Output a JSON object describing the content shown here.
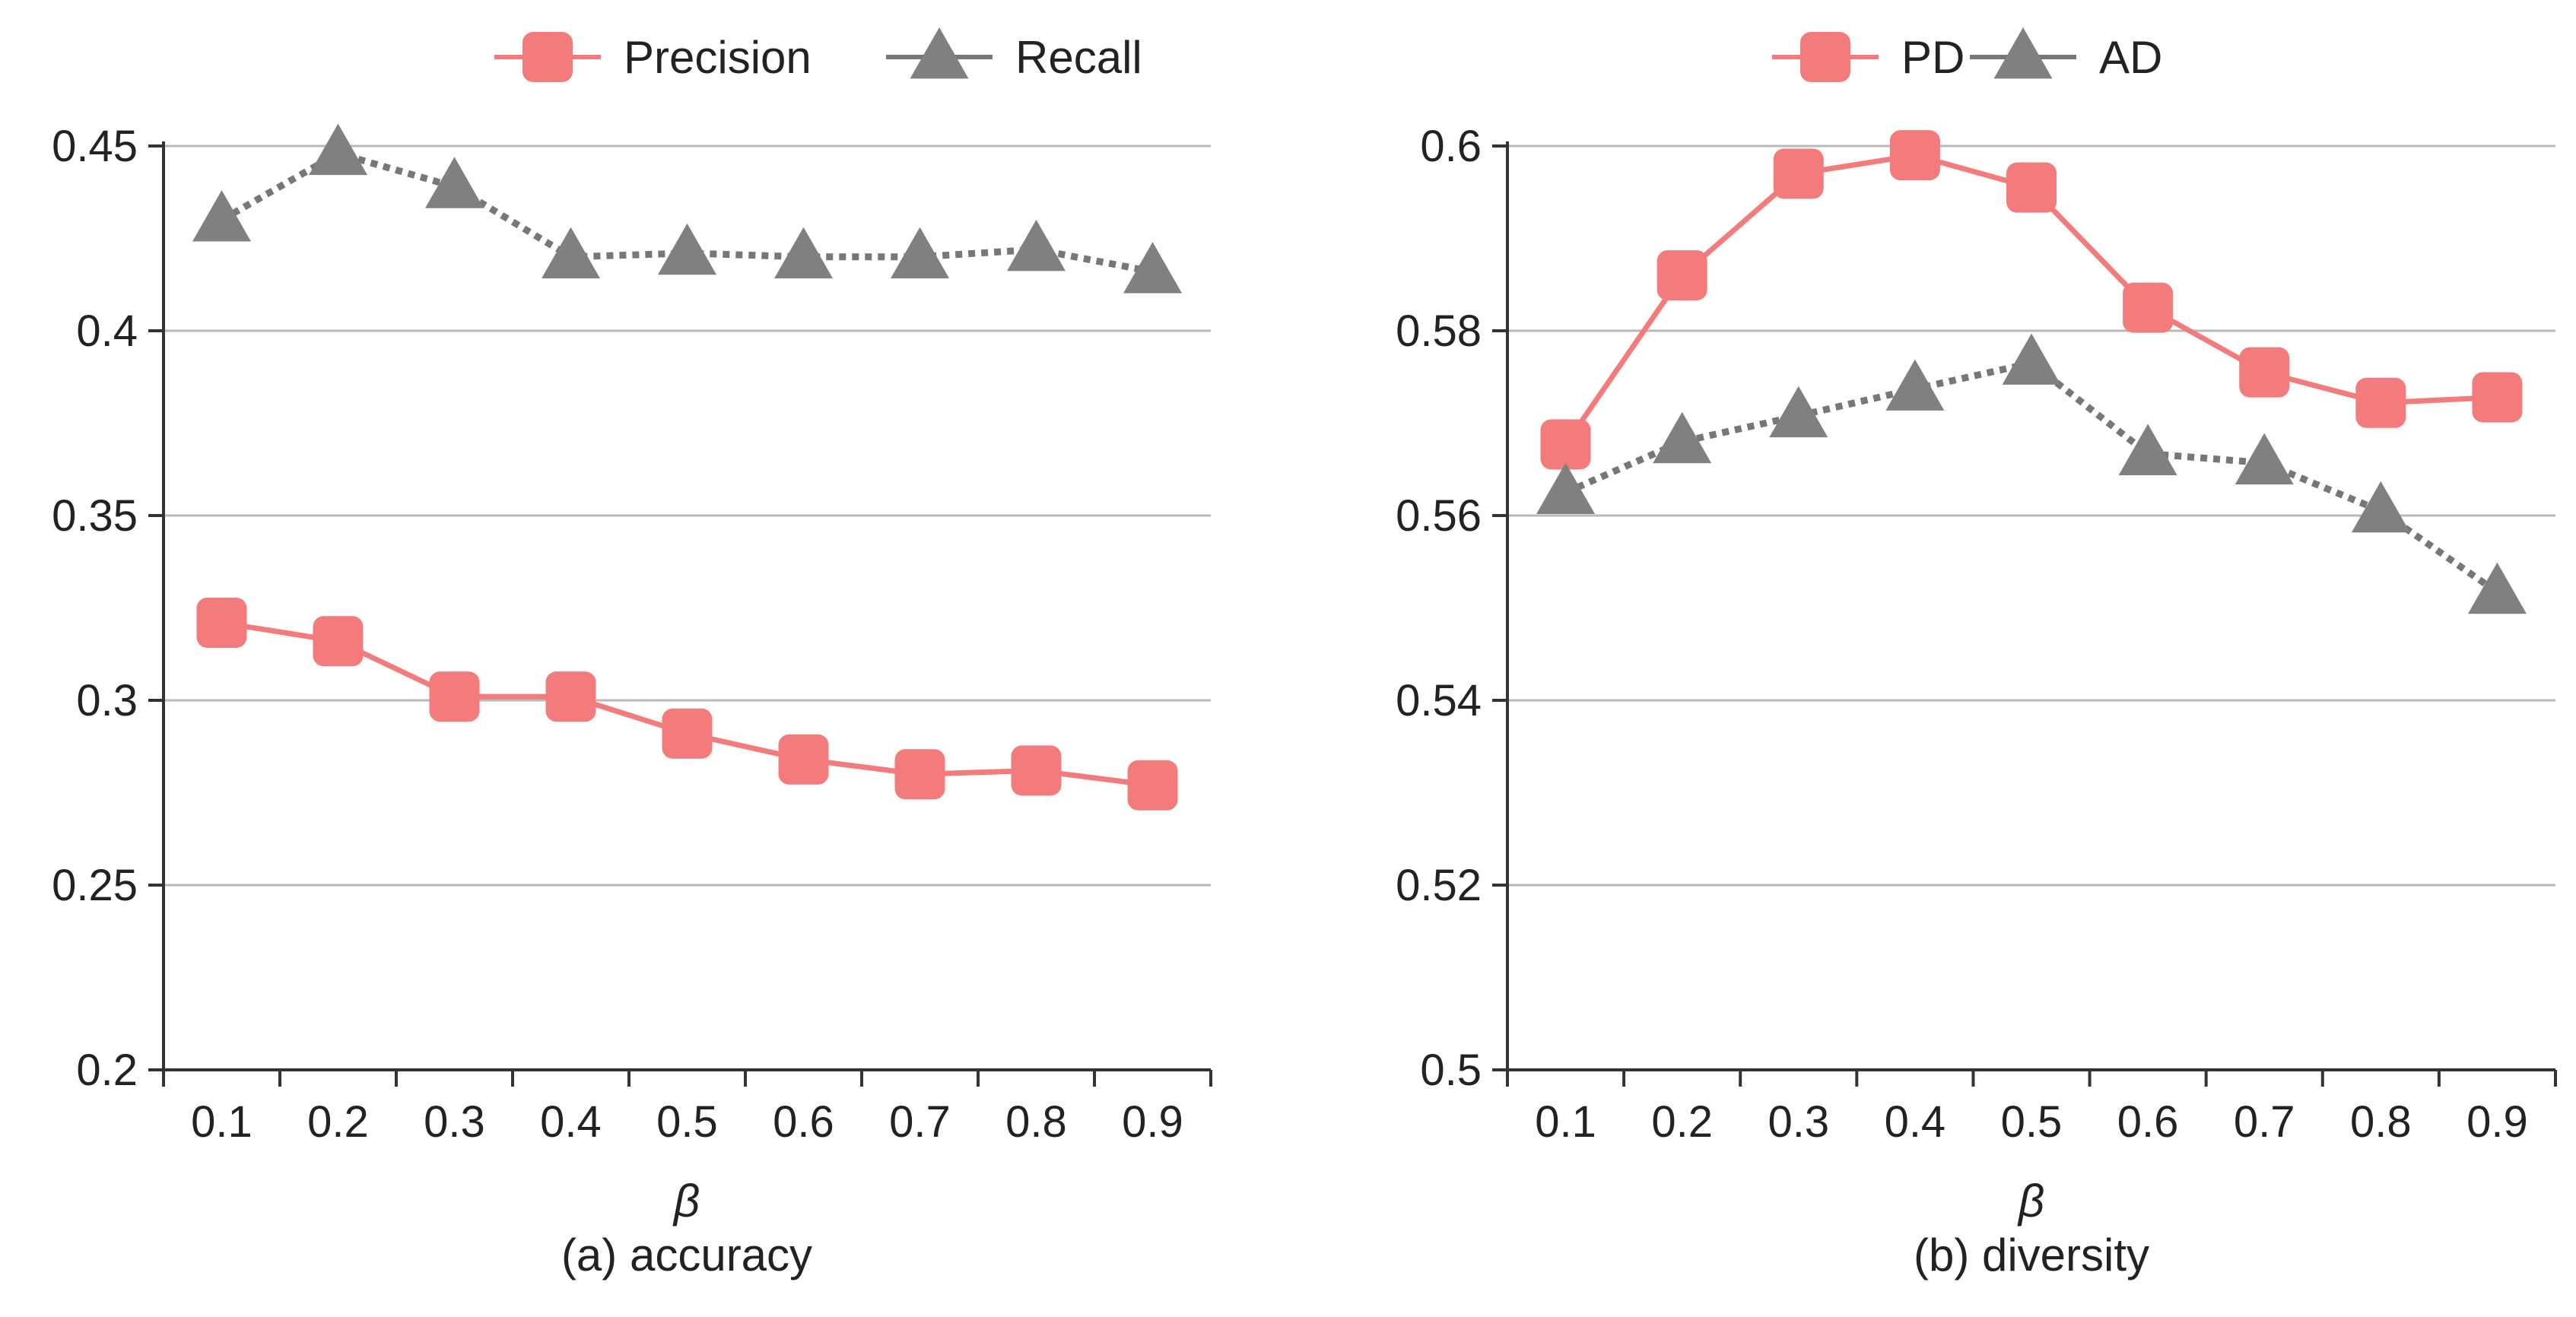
{
  "chart_data": [
    {
      "type": "line",
      "caption": "(a) accuracy",
      "xlabel": "β",
      "ylabel": "",
      "categories": [
        "0.1",
        "0.2",
        "0.3",
        "0.4",
        "0.5",
        "0.6",
        "0.7",
        "0.8",
        "0.9"
      ],
      "ylim": [
        0.2,
        0.45
      ],
      "yticks": [
        0.2,
        0.25,
        0.3,
        0.35,
        0.4,
        0.45
      ],
      "ytick_labels": [
        "0.2",
        "0.25",
        "0.3",
        "0.35",
        "0.4",
        "0.45"
      ],
      "grid": true,
      "legend_position": "top-right",
      "series": [
        {
          "name": "Precision",
          "marker": "square",
          "line": "solid",
          "color": "#f47b7b",
          "values": [
            0.321,
            0.316,
            0.301,
            0.301,
            0.291,
            0.284,
            0.28,
            0.281,
            0.277
          ]
        },
        {
          "name": "Recall",
          "marker": "triangle",
          "line": "dotted",
          "color": "#808080",
          "values": [
            0.43,
            0.448,
            0.439,
            0.42,
            0.421,
            0.42,
            0.42,
            0.422,
            0.416
          ]
        }
      ]
    },
    {
      "type": "line",
      "caption": "(b) diversity",
      "xlabel": "β",
      "ylabel": "",
      "categories": [
        "0.1",
        "0.2",
        "0.3",
        "0.4",
        "0.5",
        "0.6",
        "0.7",
        "0.8",
        "0.9"
      ],
      "ylim": [
        0.5,
        0.6
      ],
      "yticks": [
        0.5,
        0.52,
        0.54,
        0.56,
        0.58,
        0.6
      ],
      "ytick_labels": [
        "0.5",
        "0.52",
        "0.54",
        "0.56",
        "0.58",
        "0.6"
      ],
      "grid": true,
      "legend_position": "top-right",
      "series": [
        {
          "name": "PD",
          "marker": "square",
          "line": "solid",
          "color": "#f47b7b",
          "values": [
            0.5677,
            0.586,
            0.597,
            0.599,
            0.5955,
            0.5825,
            0.5755,
            0.5722,
            0.5728
          ]
        },
        {
          "name": "AD",
          "marker": "triangle",
          "line": "dotted",
          "color": "#808080",
          "values": [
            0.5625,
            0.568,
            0.5708,
            0.5737,
            0.5765,
            0.5667,
            0.5657,
            0.5605,
            0.5517
          ]
        }
      ]
    }
  ]
}
